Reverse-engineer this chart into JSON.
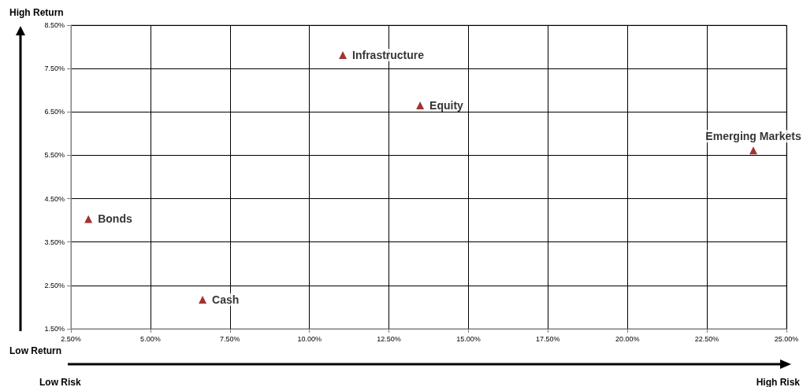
{
  "chart_data": {
    "type": "scatter",
    "series": [
      {
        "name": "Infrastructure",
        "color": "#8b0000",
        "x": [
          11.05
        ],
        "values": [
          7.81
        ]
      },
      {
        "name": "Equity",
        "color": "#8b0000",
        "x": [
          13.48
        ],
        "values": [
          6.65
        ]
      },
      {
        "name": "Emerging Markets",
        "color": "#8b0000",
        "x": [
          23.96
        ],
        "values": [
          5.61
        ]
      },
      {
        "name": "Bonds",
        "color": "#8b0000",
        "x": [
          3.05
        ],
        "values": [
          4.03
        ]
      },
      {
        "name": "Cash",
        "color": "#8b0000",
        "x": [
          6.64
        ],
        "values": [
          2.17
        ]
      }
    ],
    "xlim": [
      2.5,
      25
    ],
    "xticks": [
      {
        "value": 2.5,
        "label": "2.50%"
      },
      {
        "value": 5,
        "label": "5.00%"
      },
      {
        "value": 7.5,
        "label": "7.50%"
      },
      {
        "value": 10,
        "label": "10.00%"
      },
      {
        "value": 12.5,
        "label": "12.50%"
      },
      {
        "value": 15,
        "label": "15.00%"
      },
      {
        "value": 17.5,
        "label": "17.50%"
      },
      {
        "value": 20,
        "label": "20.00%"
      },
      {
        "value": 22.5,
        "label": "22.50%"
      },
      {
        "value": 25,
        "label": "25.00%"
      }
    ],
    "ylim": [
      1.5,
      8.5
    ],
    "yticks": [
      {
        "value": 1.5,
        "label": "1.50%"
      },
      {
        "value": 2.5,
        "label": "2.50%"
      },
      {
        "value": 3.5,
        "label": "3.50%"
      },
      {
        "value": 4.5,
        "label": "4.50%"
      },
      {
        "value": 5.5,
        "label": "5.50%"
      },
      {
        "value": 6.5,
        "label": "6.50%"
      },
      {
        "value": 7.5,
        "label": "7.50%"
      },
      {
        "value": 8.5,
        "label": "8.50%"
      }
    ],
    "annotations": [
      "High Return",
      "Low Return",
      "Low Risk",
      "High Risk"
    ],
    "grid": true,
    "legend": false,
    "marker": "triangle"
  }
}
